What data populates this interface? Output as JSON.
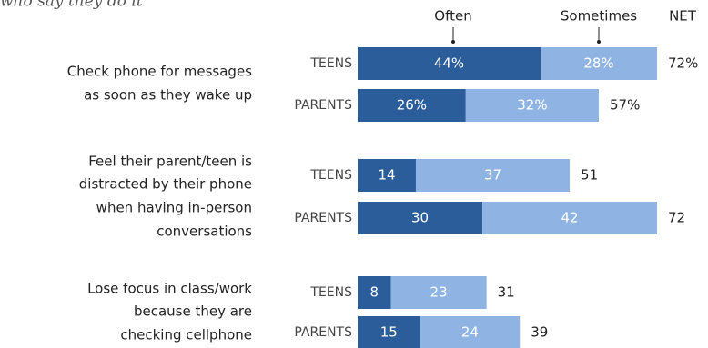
{
  "chart_data": {
    "type": "bar",
    "orientation": "horizontal",
    "stacked": true,
    "subtitle": "who say they do it",
    "group_labels": [
      [
        "Check phone for messages",
        "as soon as they wake up"
      ],
      [
        "Feel their parent/teen is",
        "distracted by their phone",
        "when having in-person",
        "conversations"
      ],
      [
        "Lose focus in class/work",
        "because they are",
        "checking cellphone"
      ]
    ],
    "categories": [
      "TEENS",
      "PARENTS",
      "TEENS",
      "PARENTS",
      "TEENS",
      "PARENTS"
    ],
    "series": [
      {
        "name": "Often",
        "color": "#2b5d9b",
        "values": [
          44,
          26,
          14,
          30,
          8,
          15
        ],
        "value_labels": [
          "44%",
          "26%",
          "14",
          "30",
          "8",
          "15"
        ]
      },
      {
        "name": "Sometimes",
        "color": "#8fb4e3",
        "values": [
          28,
          32,
          37,
          42,
          23,
          24
        ],
        "value_labels": [
          "28%",
          "32%",
          "37",
          "42",
          "23",
          "24"
        ]
      }
    ],
    "net": {
      "name": "NET",
      "values": [
        72,
        57,
        51,
        72,
        31,
        39
      ],
      "value_labels": [
        "72%",
        "57%",
        "51",
        "72",
        "31",
        "39"
      ]
    }
  }
}
